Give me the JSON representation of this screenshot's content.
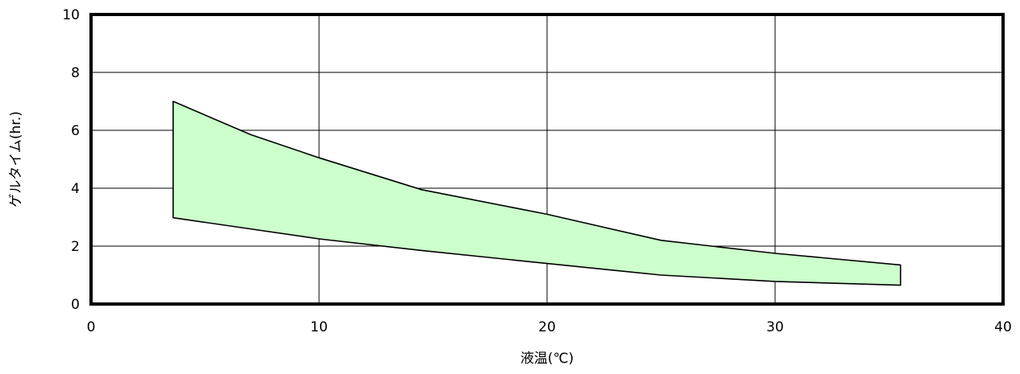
{
  "chart_data": {
    "type": "area",
    "title": "",
    "xlabel": "液温(℃)",
    "ylabel": "ゲルタイム(hr.)",
    "xlim": [
      0,
      40
    ],
    "ylim": [
      0,
      10
    ],
    "x_ticks": [
      0,
      10,
      20,
      30,
      40
    ],
    "y_ticks": [
      0,
      2,
      4,
      6,
      8,
      10
    ],
    "grid": true,
    "legend": "none",
    "fill_color": "#ccffcc",
    "line_color": "#000000",
    "series": [
      {
        "role": "upper",
        "x": [
          3.6,
          7,
          10,
          14.5,
          20,
          25,
          30,
          35.5
        ],
        "y": [
          7.0,
          5.85,
          5.05,
          3.95,
          3.1,
          2.2,
          1.75,
          1.35
        ]
      },
      {
        "role": "lower",
        "x": [
          3.6,
          10,
          14.5,
          20,
          25,
          30,
          35.5
        ],
        "y": [
          2.98,
          2.25,
          1.85,
          1.4,
          1.0,
          0.78,
          0.65
        ]
      }
    ]
  }
}
